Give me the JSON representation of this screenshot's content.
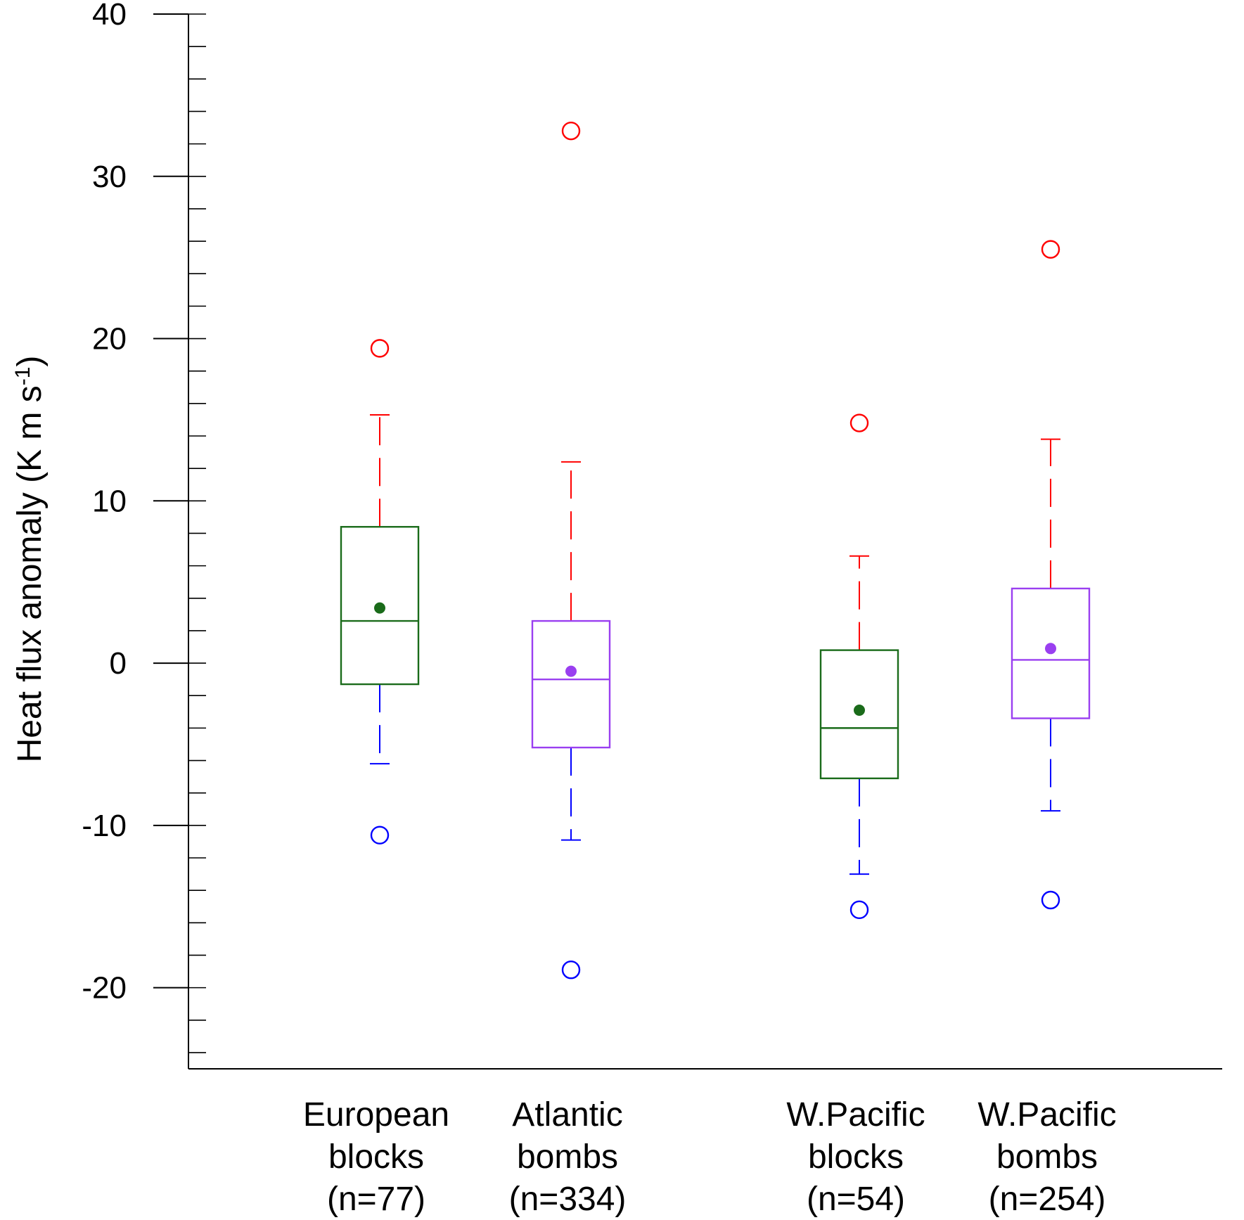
{
  "chart_data": {
    "type": "box",
    "title": "",
    "ylabel": "Heat flux anomaly (K m s",
    "ylabel_superscript": "-1",
    "ylabel_close": ")",
    "ylim": [
      -25,
      40
    ],
    "yticks": [
      40,
      30,
      20,
      10,
      0,
      -10,
      -20
    ],
    "minor_tick_step": 2,
    "colors": {
      "green": "#1a6b1a",
      "purple": "#9a3ff0",
      "upper_whisker": "#ff0000",
      "lower_whisker": "#0000ff",
      "axis": "#000000"
    },
    "boxes": [
      {
        "label_lines": [
          "European",
          "blocks",
          "(n=77)"
        ],
        "color": "#1a6b1a",
        "q1": -1.3,
        "median": 2.6,
        "q3": 8.4,
        "mean": 3.4,
        "whisker_low": -6.2,
        "whisker_high": 15.3,
        "outlier_low": -10.6,
        "outlier_high": 19.4
      },
      {
        "label_lines": [
          "Atlantic",
          "bombs",
          "(n=334)"
        ],
        "color": "#9a3ff0",
        "q1": -5.2,
        "median": -1.0,
        "q3": 2.6,
        "mean": -0.5,
        "whisker_low": -10.9,
        "whisker_high": 12.4,
        "outlier_low": -18.9,
        "outlier_high": 32.8
      },
      {
        "label_lines": [
          "W.Pacific",
          "blocks",
          "(n=54)"
        ],
        "color": "#1a6b1a",
        "q1": -7.1,
        "median": -4.0,
        "q3": 0.8,
        "mean": -2.9,
        "whisker_low": -13.0,
        "whisker_high": 6.6,
        "outlier_low": -15.2,
        "outlier_high": 14.8
      },
      {
        "label_lines": [
          "W.Pacific",
          "bombs",
          "(n=254)"
        ],
        "color": "#9a3ff0",
        "q1": -3.4,
        "median": 0.2,
        "q3": 4.6,
        "mean": 0.9,
        "whisker_low": -9.1,
        "whisker_high": 13.8,
        "outlier_low": -14.6,
        "outlier_high": 25.5
      }
    ]
  }
}
